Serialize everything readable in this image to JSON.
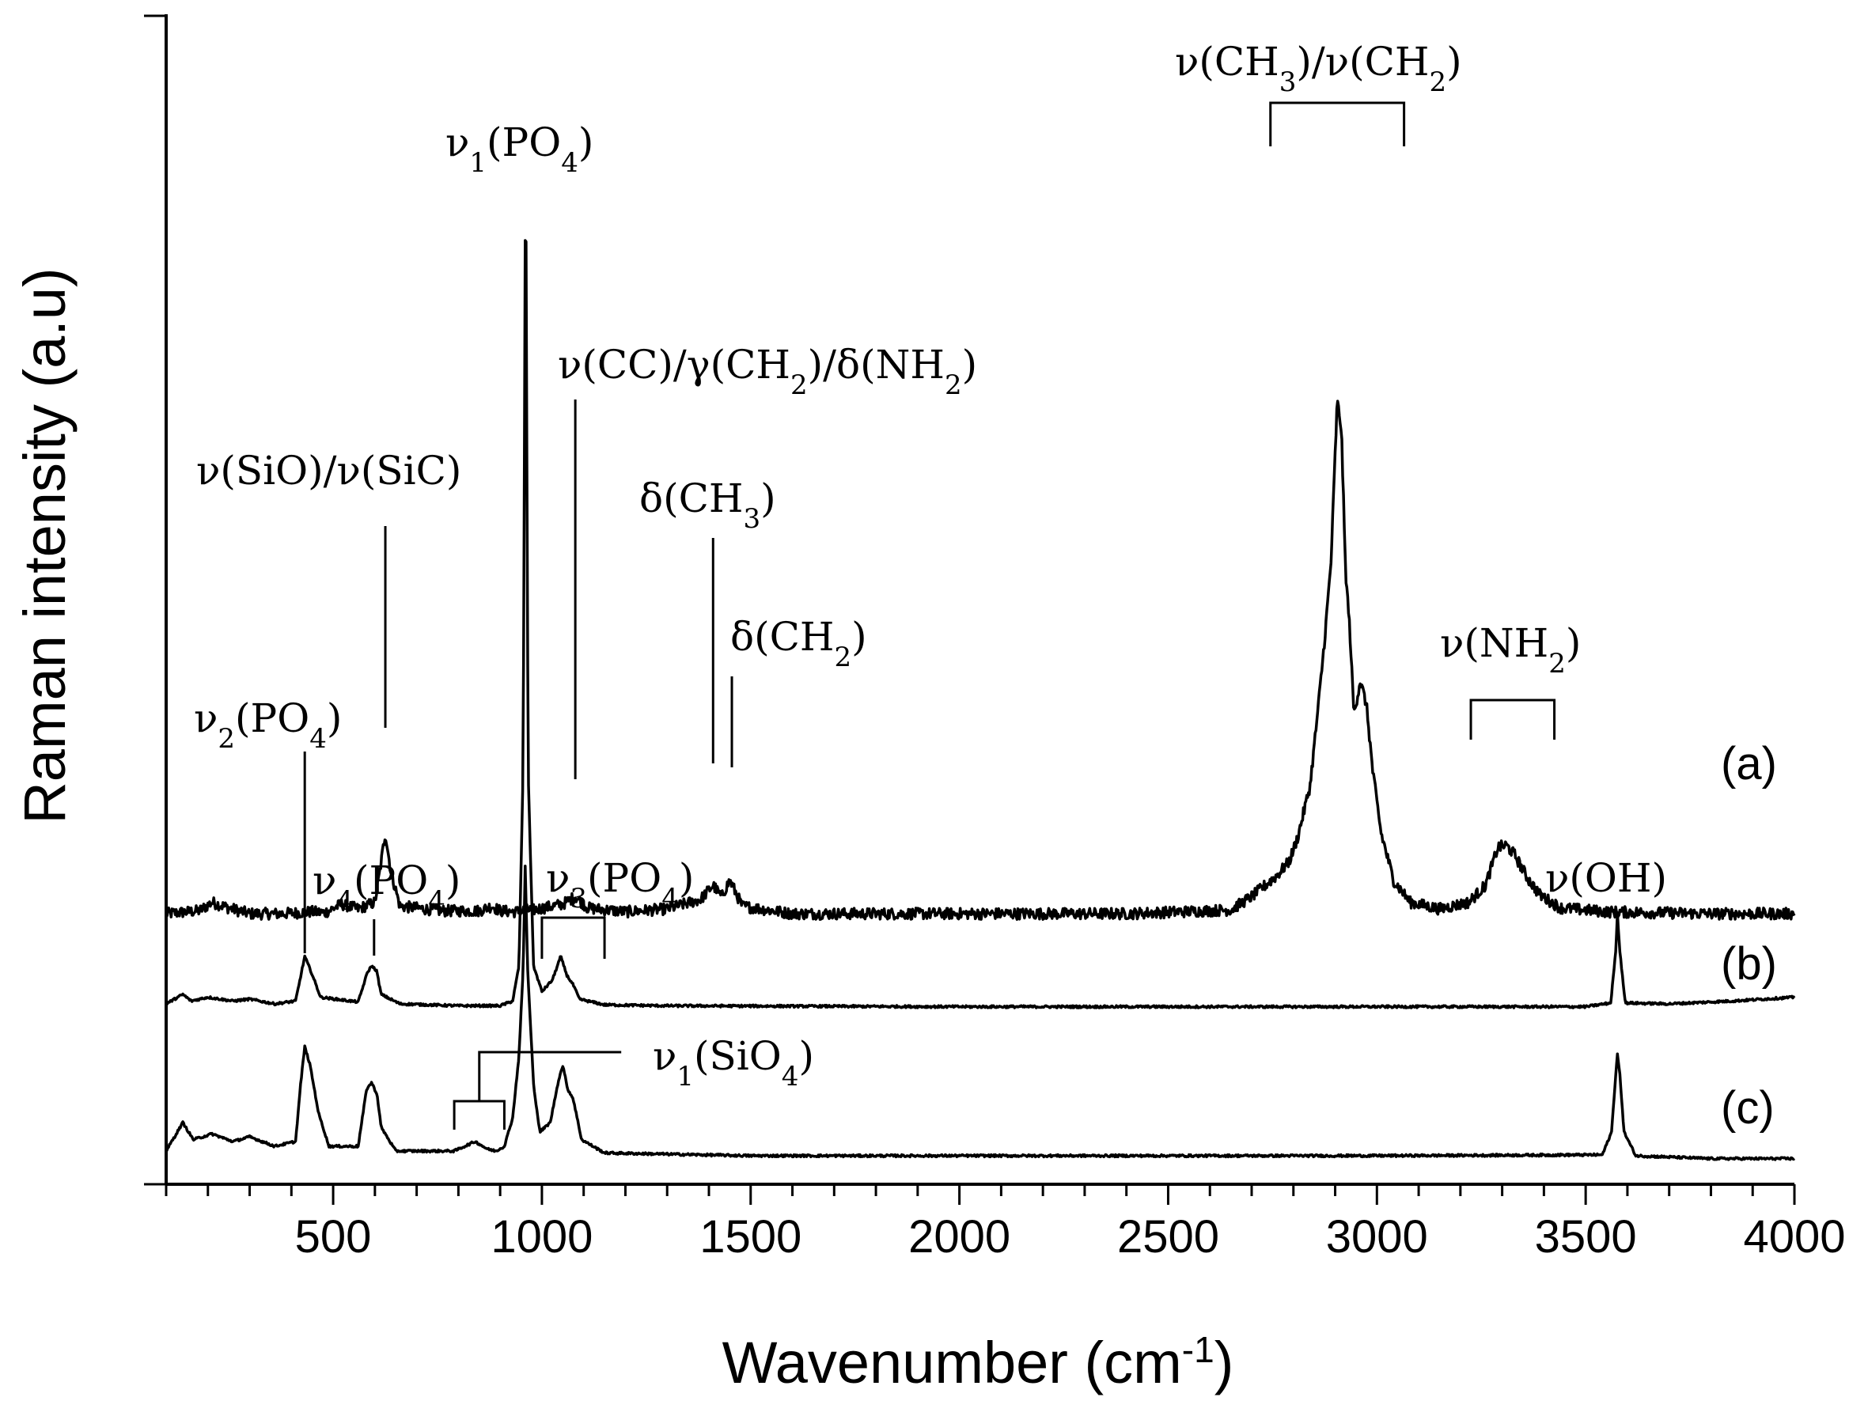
{
  "chart_data": {
    "type": "line",
    "title": "",
    "xlabel": "Wavenumber (cm",
    "xlabel_sup": "-1",
    "xlabel_end": ")",
    "ylabel": "Raman intensity (a.u)",
    "xlim": [
      100,
      4000
    ],
    "xticks": [
      500,
      1000,
      1500,
      2000,
      2500,
      3000,
      3500,
      4000
    ],
    "xtick_labels": [
      "500",
      "1000",
      "1500",
      "2000",
      "2500",
      "3000",
      "3500",
      "4000"
    ],
    "y_tick_labels_shown": false,
    "legend": "none",
    "grid": false,
    "series": [
      {
        "label": "(a)",
        "baseline": 1.0,
        "noise": 0.06,
        "points": [
          [
            100,
            1.0
          ],
          [
            180,
            1.03
          ],
          [
            210,
            1.12
          ],
          [
            250,
            1.06
          ],
          [
            300,
            1.0
          ],
          [
            380,
            1.0
          ],
          [
            450,
            1.02
          ],
          [
            480,
            1.01
          ],
          [
            520,
            1.1
          ],
          [
            560,
            1.05
          ],
          [
            600,
            1.12
          ],
          [
            612,
            1.45
          ],
          [
            625,
            1.85
          ],
          [
            638,
            1.45
          ],
          [
            660,
            1.08
          ],
          [
            700,
            1.06
          ],
          [
            760,
            1.03
          ],
          [
            850,
            1.03
          ],
          [
            880,
            1.08
          ],
          [
            900,
            1.03
          ],
          [
            940,
            1.02
          ],
          [
            960,
            1.04
          ],
          [
            980,
            1.04
          ],
          [
            1050,
            1.1
          ],
          [
            1080,
            1.18
          ],
          [
            1110,
            1.06
          ],
          [
            1200,
            1.02
          ],
          [
            1300,
            1.05
          ],
          [
            1380,
            1.15
          ],
          [
            1410,
            1.3
          ],
          [
            1430,
            1.18
          ],
          [
            1450,
            1.35
          ],
          [
            1480,
            1.08
          ],
          [
            1600,
            1.0
          ],
          [
            2000,
            1.0
          ],
          [
            2400,
            1.0
          ],
          [
            2650,
            1.04
          ],
          [
            2700,
            1.18
          ],
          [
            2760,
            1.4
          ],
          [
            2790,
            1.55
          ],
          [
            2810,
            1.8
          ],
          [
            2840,
            2.35
          ],
          [
            2860,
            3.2
          ],
          [
            2875,
            3.9
          ],
          [
            2890,
            4.7
          ],
          [
            2905,
            6.4
          ],
          [
            2915,
            6.1
          ],
          [
            2925,
            4.6
          ],
          [
            2935,
            4.0
          ],
          [
            2945,
            3.1
          ],
          [
            2960,
            3.45
          ],
          [
            2975,
            3.2
          ],
          [
            2990,
            2.5
          ],
          [
            3010,
            1.85
          ],
          [
            3040,
            1.35
          ],
          [
            3080,
            1.12
          ],
          [
            3150,
            1.05
          ],
          [
            3220,
            1.12
          ],
          [
            3260,
            1.3
          ],
          [
            3290,
            1.7
          ],
          [
            3310,
            1.72
          ],
          [
            3330,
            1.62
          ],
          [
            3360,
            1.38
          ],
          [
            3390,
            1.2
          ],
          [
            3440,
            1.06
          ],
          [
            3550,
            1.02
          ],
          [
            3800,
            1.0
          ],
          [
            4000,
            1.0
          ]
        ]
      },
      {
        "label": "(b)",
        "baseline": 0.0,
        "noise": 0.012,
        "points": [
          [
            100,
            0.05
          ],
          [
            140,
            0.15
          ],
          [
            160,
            0.08
          ],
          [
            200,
            0.12
          ],
          [
            260,
            0.08
          ],
          [
            300,
            0.1
          ],
          [
            360,
            0.05
          ],
          [
            410,
            0.08
          ],
          [
            432,
            0.55
          ],
          [
            448,
            0.38
          ],
          [
            470,
            0.12
          ],
          [
            560,
            0.07
          ],
          [
            582,
            0.38
          ],
          [
            592,
            0.45
          ],
          [
            604,
            0.4
          ],
          [
            615,
            0.15
          ],
          [
            660,
            0.05
          ],
          [
            800,
            0.03
          ],
          [
            900,
            0.03
          ],
          [
            930,
            0.08
          ],
          [
            945,
            0.45
          ],
          [
            955,
            2.5
          ],
          [
            961,
            9.2
          ],
          [
            967,
            2.5
          ],
          [
            980,
            0.45
          ],
          [
            1000,
            0.18
          ],
          [
            1025,
            0.3
          ],
          [
            1045,
            0.55
          ],
          [
            1060,
            0.35
          ],
          [
            1075,
            0.25
          ],
          [
            1090,
            0.1
          ],
          [
            1150,
            0.04
          ],
          [
            1300,
            0.03
          ],
          [
            2000,
            0.02
          ],
          [
            3000,
            0.02
          ],
          [
            3500,
            0.02
          ],
          [
            3560,
            0.06
          ],
          [
            3572,
            0.6
          ],
          [
            3576,
            1.0
          ],
          [
            3582,
            0.6
          ],
          [
            3595,
            0.06
          ],
          [
            3700,
            0.05
          ],
          [
            3850,
            0.08
          ],
          [
            4000,
            0.12
          ]
        ]
      },
      {
        "label": "(c)",
        "baseline": -1.55,
        "noise": 0.012,
        "points": [
          [
            100,
            -1.5
          ],
          [
            140,
            -1.2
          ],
          [
            165,
            -1.38
          ],
          [
            210,
            -1.32
          ],
          [
            260,
            -1.4
          ],
          [
            300,
            -1.35
          ],
          [
            360,
            -1.45
          ],
          [
            410,
            -1.4
          ],
          [
            422,
            -0.8
          ],
          [
            432,
            -0.4
          ],
          [
            445,
            -0.6
          ],
          [
            465,
            -1.1
          ],
          [
            490,
            -1.45
          ],
          [
            560,
            -1.45
          ],
          [
            580,
            -0.85
          ],
          [
            592,
            -0.78
          ],
          [
            605,
            -0.9
          ],
          [
            615,
            -1.25
          ],
          [
            650,
            -1.5
          ],
          [
            790,
            -1.5
          ],
          [
            840,
            -1.4
          ],
          [
            870,
            -1.48
          ],
          [
            890,
            -1.5
          ],
          [
            910,
            -1.45
          ],
          [
            930,
            -1.15
          ],
          [
            945,
            -0.5
          ],
          [
            955,
            0.4
          ],
          [
            960,
            1.5
          ],
          [
            966,
            0.4
          ],
          [
            980,
            -0.8
          ],
          [
            995,
            -1.3
          ],
          [
            1020,
            -1.2
          ],
          [
            1040,
            -0.75
          ],
          [
            1050,
            -0.6
          ],
          [
            1062,
            -0.85
          ],
          [
            1075,
            -0.95
          ],
          [
            1095,
            -1.38
          ],
          [
            1150,
            -1.52
          ],
          [
            1500,
            -1.55
          ],
          [
            2000,
            -1.55
          ],
          [
            3000,
            -1.55
          ],
          [
            3540,
            -1.54
          ],
          [
            3562,
            -1.3
          ],
          [
            3572,
            -0.7
          ],
          [
            3576,
            -0.48
          ],
          [
            3582,
            -0.7
          ],
          [
            3592,
            -1.3
          ],
          [
            3620,
            -1.55
          ],
          [
            3800,
            -1.58
          ],
          [
            4000,
            -1.58
          ]
        ]
      }
    ],
    "annotations": [
      {
        "text": "ν(CH",
        "sub": "3",
        "text2": ")/ν(CH",
        "sub2": "2",
        "text3": ")"
      },
      {
        "text": "ν",
        "sub": "1",
        "text2": "(PO",
        "sub2": "4",
        "text3": ")"
      },
      {
        "text": "ν(CC)/γ(CH",
        "sub": "2",
        "text2": ")/δ(NH",
        "sub2": "2",
        "text3": ")"
      },
      {
        "text": "ν(SiO)/ν(SiC)",
        "sub": "",
        "text2": "",
        "sub2": "",
        "text3": ""
      },
      {
        "text": "δ(CH",
        "sub": "3",
        "text2": ")",
        "sub2": "",
        "text3": ""
      },
      {
        "text": "δ(CH",
        "sub": "2",
        "text2": ")",
        "sub2": "",
        "text3": ""
      },
      {
        "text": "ν",
        "sub": "2",
        "text2": "(PO",
        "sub2": "4",
        "text3": ")"
      },
      {
        "text": "ν(NH",
        "sub": "2",
        "text2": ")",
        "sub2": "",
        "text3": ""
      },
      {
        "text": "ν",
        "sub": "4",
        "text2": "(PO",
        "sub2": "4",
        "text3": ")"
      },
      {
        "text": "ν",
        "sub": "3",
        "text2": "(PO",
        "sub2": "4",
        "text3": ")"
      },
      {
        "text": "ν(OH)",
        "sub": "",
        "text2": "",
        "sub2": "",
        "text3": ""
      },
      {
        "text": "ν",
        "sub": "1",
        "text2": "(SiO",
        "sub2": "4",
        "text3": ")"
      }
    ]
  }
}
